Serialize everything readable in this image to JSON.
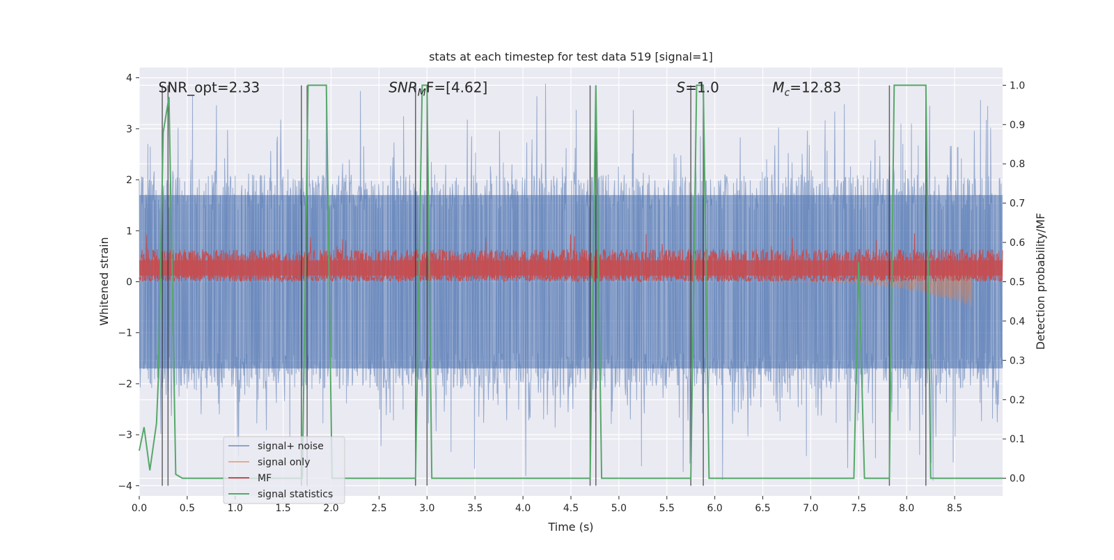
{
  "chart_data": {
    "type": "line",
    "title": "stats at each timestep for test data 519 [signal=1]",
    "xlabel": "Time (s)",
    "ylabel": "Whitened strain",
    "ylabel_right": "Detection probability/MF",
    "xlim": [
      0.0,
      9.0
    ],
    "ylim": [
      -4.2,
      4.2
    ],
    "ylim_right": [
      -0.045,
      1.045
    ],
    "x_ticks": [
      0.0,
      0.5,
      1.0,
      1.5,
      2.0,
      2.5,
      3.0,
      3.5,
      4.0,
      4.5,
      5.0,
      5.5,
      6.0,
      6.5,
      7.0,
      7.5,
      8.0,
      8.5
    ],
    "x_tick_labels": [
      "0.0",
      "0.5",
      "1.0",
      "1.5",
      "2.0",
      "2.5",
      "3.0",
      "3.5",
      "4.0",
      "4.5",
      "5.0",
      "5.5",
      "6.0",
      "6.5",
      "7.0",
      "7.5",
      "8.0",
      "8.5"
    ],
    "y_ticks": [
      -4,
      -3,
      -2,
      -1,
      0,
      1,
      2,
      3,
      4
    ],
    "y_tick_labels": [
      "−4",
      "−3",
      "−2",
      "−1",
      "0",
      "1",
      "2",
      "3",
      "4"
    ],
    "y_right_ticks": [
      0.0,
      0.1,
      0.2,
      0.3,
      0.4,
      0.5,
      0.6,
      0.7,
      0.8,
      0.9,
      1.0
    ],
    "y_right_tick_labels": [
      "0.0",
      "0.1",
      "0.2",
      "0.3",
      "0.4",
      "0.5",
      "0.6",
      "0.7",
      "0.8",
      "0.9",
      "1.0"
    ],
    "grid": true,
    "legend_position": "lower-left",
    "annotations": [
      {
        "text": "SNR_opt=2.33",
        "x": 0.2,
        "y": 3.8
      },
      {
        "text": "SNR",
        "sub": "M",
        "rest": "F=[4.62]",
        "x": 2.6,
        "y": 3.8
      },
      {
        "text": "S",
        "rest": "=1.0",
        "x": 5.6,
        "y": 3.8
      },
      {
        "text": "M",
        "sub": "c",
        "rest": "=12.83",
        "x": 6.6,
        "y": 3.8
      }
    ],
    "series": [
      {
        "name": "signal+ noise",
        "color": "#4c72b0",
        "opacity": 0.55,
        "axis": "left",
        "kind": "noise",
        "typical_range": [
          -1.7,
          1.7
        ],
        "peak_range": [
          -3.9,
          3.9
        ]
      },
      {
        "name": "signal only",
        "color": "#dd8452",
        "opacity": 0.55,
        "axis": "left",
        "kind": "chirp",
        "start_x": 6.6,
        "end_x": 8.68,
        "peak_amplitude": 0.5
      },
      {
        "name": "MF",
        "color": "#c44e52",
        "opacity": 1.0,
        "axis": "left",
        "kind": "mf",
        "typical_range": [
          0.0,
          0.65
        ],
        "peak_max": 0.95
      },
      {
        "name": "signal statistics",
        "color": "#55a868",
        "opacity": 1.0,
        "axis": "right",
        "x": [
          0.0,
          0.05,
          0.11,
          0.18,
          0.2,
          0.25,
          0.31,
          0.38,
          0.45,
          1.7,
          1.76,
          1.95,
          2.01,
          2.88,
          2.95,
          3.0,
          3.05,
          4.7,
          4.76,
          4.82,
          5.75,
          5.81,
          5.88,
          5.94,
          6.0,
          7.45,
          7.5,
          7.56,
          7.82,
          7.87,
          8.2,
          8.25,
          9.0
        ],
        "y": [
          0.07,
          0.13,
          0.02,
          0.14,
          0.26,
          0.88,
          0.97,
          0.01,
          0.0,
          0.0,
          1.0,
          1.0,
          0.0,
          0.0,
          1.0,
          1.0,
          0.0,
          0.0,
          1.0,
          0.0,
          0.0,
          1.0,
          1.0,
          0.0,
          0.0,
          0.0,
          0.55,
          0.0,
          0.0,
          1.0,
          1.0,
          0.0,
          0.0
        ]
      },
      {
        "name": "",
        "color": "#333333",
        "opacity": 0.75,
        "axis": "left",
        "kind": "vlines",
        "x": [
          0.24,
          0.3,
          1.69,
          1.75,
          2.88,
          3.0,
          4.7,
          4.76,
          5.75,
          5.88,
          7.82,
          8.2
        ]
      }
    ]
  }
}
